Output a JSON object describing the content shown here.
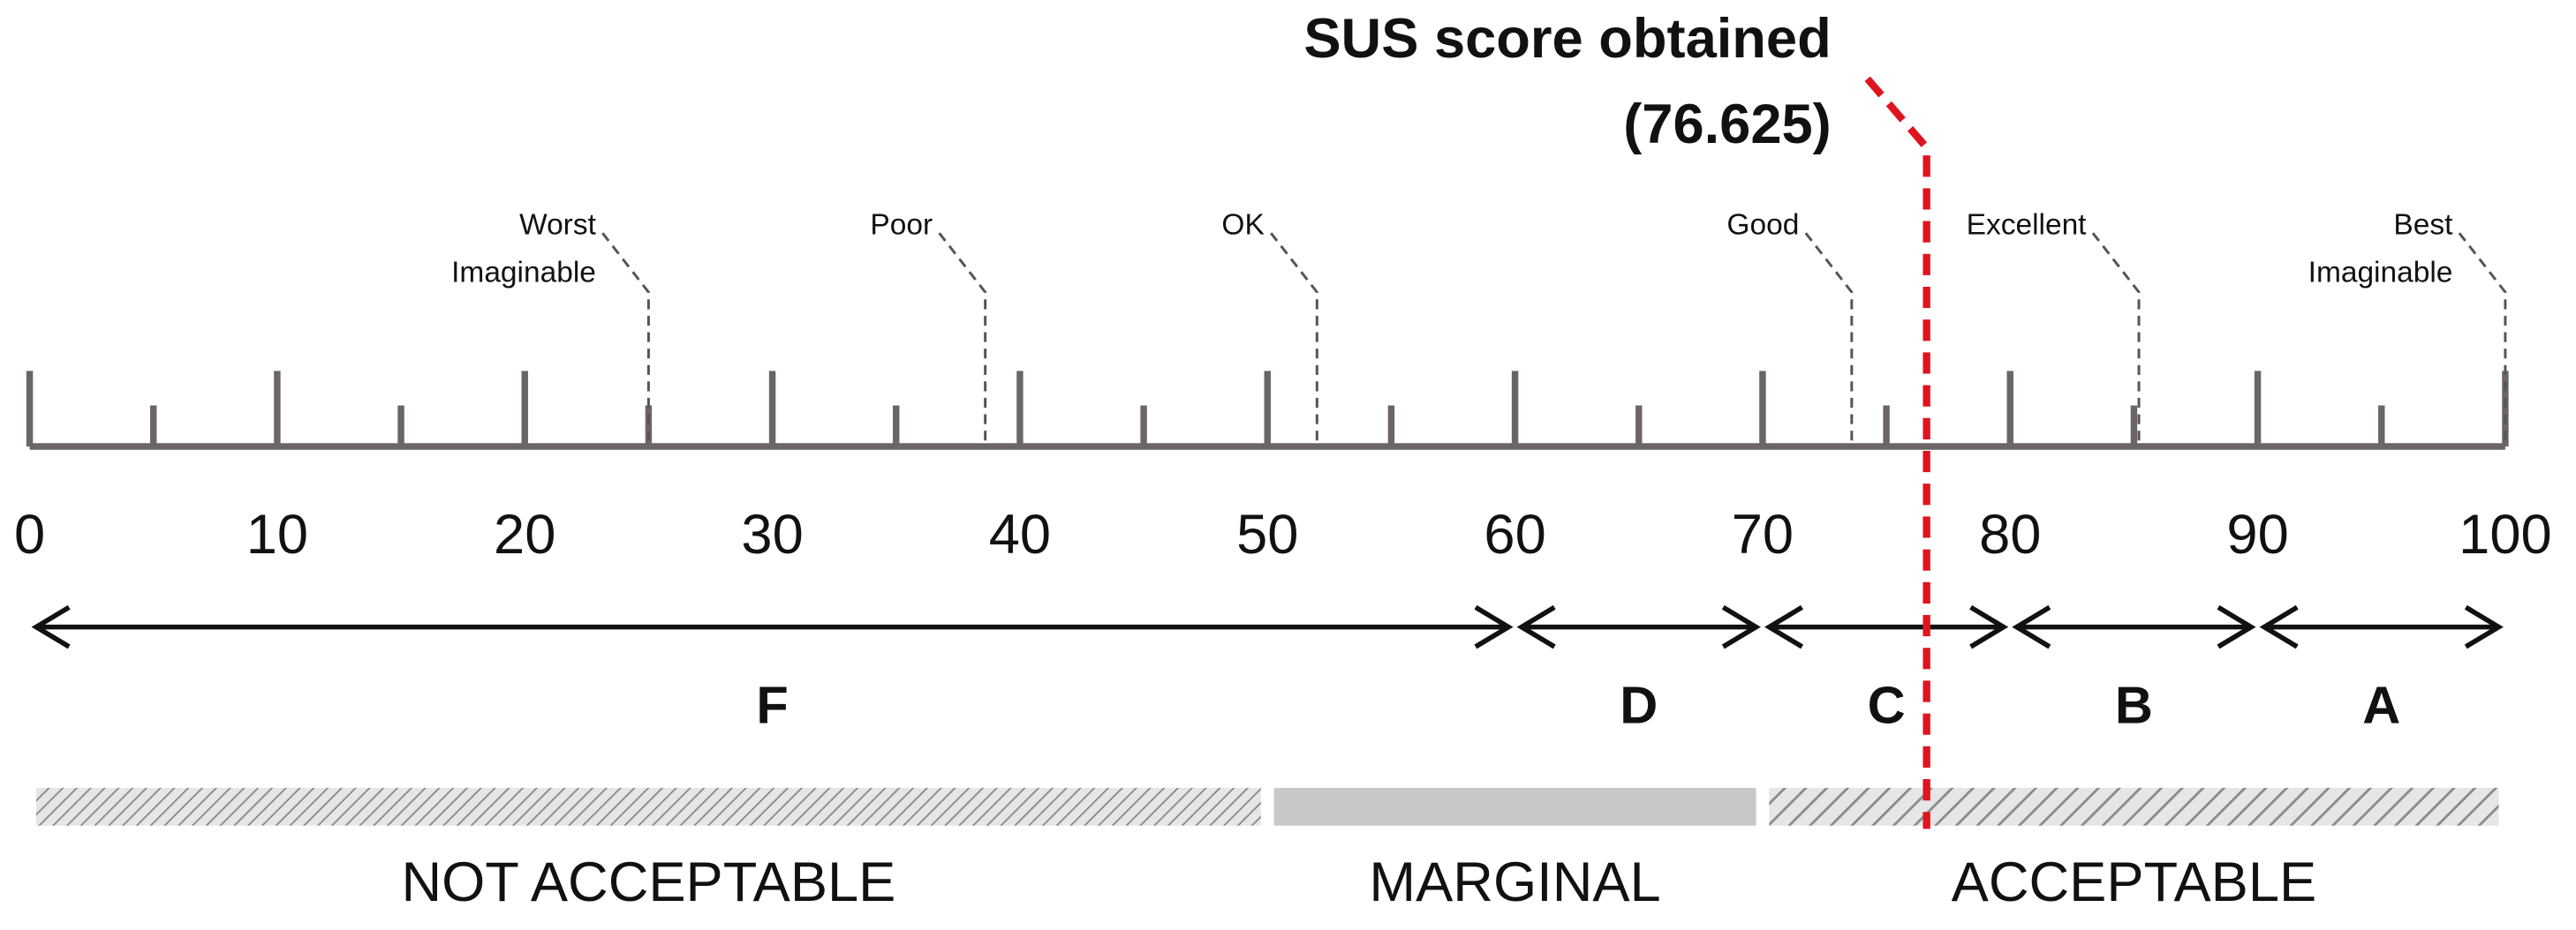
{
  "chart_data": {
    "type": "sus-scale",
    "xlim": [
      0,
      100
    ],
    "xticks": [
      0,
      10,
      20,
      30,
      40,
      50,
      60,
      70,
      80,
      90,
      100
    ],
    "minor_ticks": [
      5,
      15,
      25,
      35,
      45,
      55,
      65,
      75,
      85,
      95
    ],
    "adjectives": [
      {
        "lines": [
          "Worst",
          "Imaginable"
        ],
        "value": 25
      },
      {
        "lines": [
          "Poor"
        ],
        "value": 38.6
      },
      {
        "lines": [
          "OK"
        ],
        "value": 52
      },
      {
        "lines": [
          "Good"
        ],
        "value": 73.6
      },
      {
        "lines": [
          "Excellent"
        ],
        "value": 85.2
      },
      {
        "lines": [
          "Best",
          "Imaginable"
        ],
        "value": 100
      }
    ],
    "grades": [
      {
        "label": "F",
        "start": 0,
        "end": 60
      },
      {
        "label": "D",
        "start": 60,
        "end": 70
      },
      {
        "label": "C",
        "start": 70,
        "end": 80
      },
      {
        "label": "B",
        "start": 80,
        "end": 90
      },
      {
        "label": "A",
        "start": 90,
        "end": 100
      }
    ],
    "acceptability": [
      {
        "label": "NOT ACCEPTABLE",
        "start": 0,
        "end": 50,
        "style": "hatched"
      },
      {
        "label": "MARGINAL",
        "start": 50,
        "end": 70,
        "style": "solid"
      },
      {
        "label": "ACCEPTABLE",
        "start": 70,
        "end": 100,
        "style": "hatched-grid"
      }
    ],
    "score": {
      "title": "SUS score obtained",
      "value": 76.625,
      "value_label": "(76.625)",
      "color": "#e0141e"
    },
    "axis_color": "#6b6565",
    "bar_color": "#c8c8c8"
  }
}
